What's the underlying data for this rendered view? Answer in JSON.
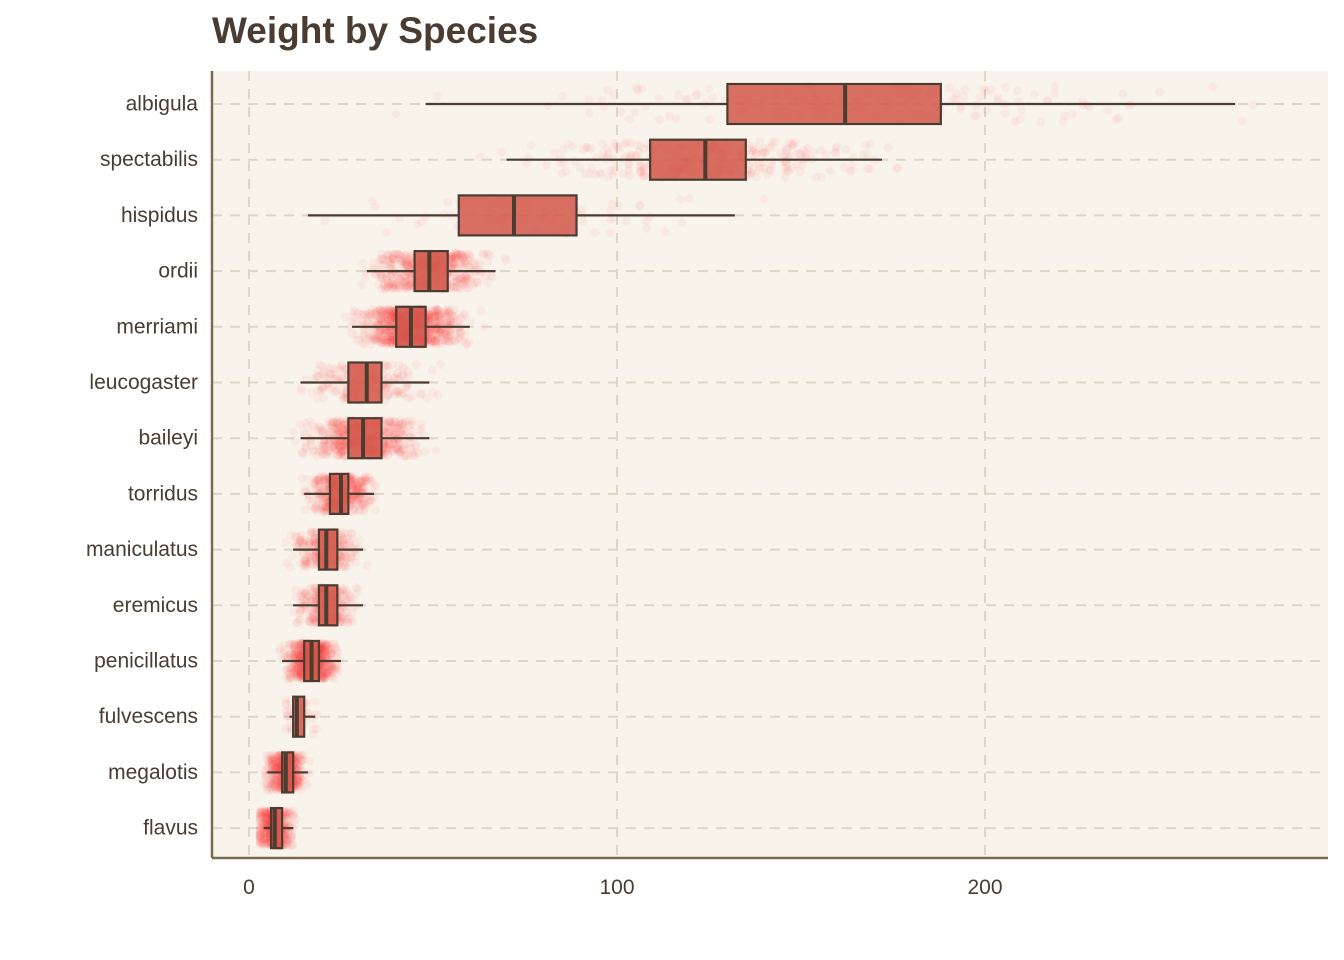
{
  "chart_data": {
    "type": "box",
    "title": "Weight by Species",
    "xlabel": "",
    "ylabel": "",
    "xlim": [
      -10,
      293
    ],
    "x_ticks": [
      0,
      100,
      200
    ],
    "x_tick_labels": [
      "0",
      "100",
      "200"
    ],
    "grid": true,
    "jittered_points": true,
    "categories": [
      "albigula",
      "spectabilis",
      "hispidus",
      "ordii",
      "merriami",
      "leucogaster",
      "baileyi",
      "torridus",
      "maniculatus",
      "eremicus",
      "penicillatus",
      "fulvescens",
      "megalotis",
      "flavus"
    ],
    "series": [
      {
        "category": "albigula",
        "whisker_low": 48,
        "q1": 130,
        "median": 162,
        "q3": 188,
        "whisker_high": 268,
        "point_density": 0.15,
        "point_spread": [
          40,
          285
        ]
      },
      {
        "category": "spectabilis",
        "whisker_low": 70,
        "q1": 109,
        "median": 124,
        "q3": 135,
        "whisker_high": 172,
        "point_density": 0.35,
        "point_spread": [
          60,
          185
        ]
      },
      {
        "category": "hispidus",
        "whisker_low": 16,
        "q1": 57,
        "median": 72,
        "q3": 89,
        "whisker_high": 132,
        "point_density": 0.05,
        "point_spread": [
          20,
          140
        ]
      },
      {
        "category": "ordii",
        "whisker_low": 32,
        "q1": 45,
        "median": 49,
        "q3": 54,
        "whisker_high": 67,
        "point_density": 0.6,
        "point_spread": [
          20,
          70
        ]
      },
      {
        "category": "merriami",
        "whisker_low": 28,
        "q1": 40,
        "median": 44,
        "q3": 48,
        "whisker_high": 60,
        "point_density": 1.0,
        "point_spread": [
          15,
          66
        ]
      },
      {
        "category": "leucogaster",
        "whisker_low": 14,
        "q1": 27,
        "median": 32,
        "q3": 36,
        "whisker_high": 49,
        "point_density": 0.25,
        "point_spread": [
          12,
          52
        ]
      },
      {
        "category": "baileyi",
        "whisker_low": 14,
        "q1": 27,
        "median": 31,
        "q3": 36,
        "whisker_high": 49,
        "point_density": 0.7,
        "point_spread": [
          12,
          52
        ]
      },
      {
        "category": "torridus",
        "whisker_low": 15,
        "q1": 22,
        "median": 25,
        "q3": 27,
        "whisker_high": 34,
        "point_density": 0.5,
        "point_spread": [
          12,
          40
        ]
      },
      {
        "category": "maniculatus",
        "whisker_low": 12,
        "q1": 19,
        "median": 21,
        "q3": 24,
        "whisker_high": 31,
        "point_density": 0.3,
        "point_spread": [
          10,
          35
        ]
      },
      {
        "category": "eremicus",
        "whisker_low": 12,
        "q1": 19,
        "median": 21,
        "q3": 24,
        "whisker_high": 31,
        "point_density": 0.3,
        "point_spread": [
          10,
          35
        ]
      },
      {
        "category": "penicillatus",
        "whisker_low": 9,
        "q1": 15,
        "median": 17,
        "q3": 19,
        "whisker_high": 25,
        "point_density": 0.75,
        "point_spread": [
          8,
          30
        ]
      },
      {
        "category": "fulvescens",
        "whisker_low": 11,
        "q1": 12,
        "median": 13,
        "q3": 15,
        "whisker_high": 18,
        "point_density": 0.03,
        "point_spread": [
          10,
          19
        ]
      },
      {
        "category": "megalotis",
        "whisker_low": 5,
        "q1": 9,
        "median": 10,
        "q3": 12,
        "whisker_high": 16,
        "point_density": 0.55,
        "point_spread": [
          4,
          22
        ]
      },
      {
        "category": "flavus",
        "whisker_low": 4,
        "q1": 6,
        "median": 7,
        "q3": 9,
        "whisker_high": 12,
        "point_density": 0.5,
        "point_spread": [
          3,
          14
        ]
      }
    ],
    "colors": {
      "box_fill": "#d4574a",
      "box_stroke": "#4a3c31",
      "points": "#ff3333",
      "panel_background": "#f8f4ec",
      "grid": "#dcd7c4",
      "axis": "#7a6a52",
      "text": "#4a3c31"
    }
  }
}
